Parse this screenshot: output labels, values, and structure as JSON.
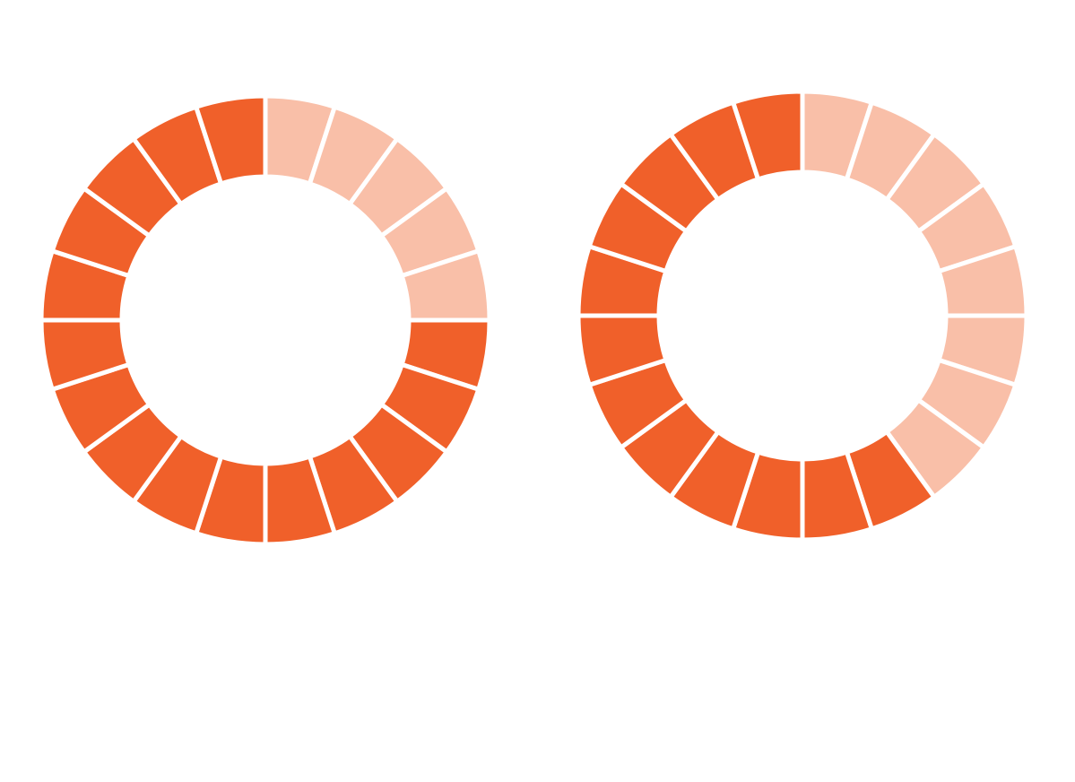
{
  "chart_data": [
    {
      "type": "segmented-donut",
      "values": [
        5,
        15
      ],
      "colors": [
        "#f9bfa8",
        "#f0602a"
      ]
    },
    {
      "type": "segmented-donut",
      "values": [
        8,
        12
      ],
      "colors": [
        "#f9bfa8",
        "#f0602a"
      ]
    }
  ]
}
